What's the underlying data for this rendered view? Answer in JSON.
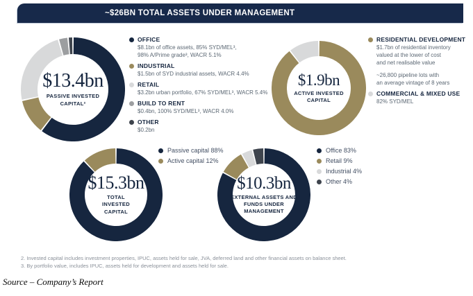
{
  "header": {
    "title": "~$26BN TOTAL ASSETS UNDER MANAGEMENT"
  },
  "palette": {
    "navy": "#16263F",
    "gold": "#9A8A5C",
    "light_gray": "#D8D9DA",
    "mid_gray": "#9C9EA0",
    "charcoal": "#3E444D",
    "header_bar": "#17294A",
    "body_text": "#5C6874",
    "footnote_gray": "#8A9099"
  },
  "chart_data": [
    {
      "type": "pie",
      "title": "Passive invested capital",
      "center_value": "$13.4bn",
      "center_label_lines": [
        "PASSIVE INVESTED",
        "CAPITAL²"
      ],
      "legend_position": "right",
      "segments": [
        {
          "label": "Office",
          "value_bn": 8.1,
          "pct": 60.4,
          "color": "navy"
        },
        {
          "label": "Industrial",
          "value_bn": 1.5,
          "pct": 11.2,
          "color": "gold"
        },
        {
          "label": "Retail",
          "value_bn": 3.2,
          "pct": 23.9,
          "color": "light_gray"
        },
        {
          "label": "Build to rent",
          "value_bn": 0.4,
          "pct": 3.0,
          "color": "mid_gray"
        },
        {
          "label": "Other",
          "value_bn": 0.2,
          "pct": 1.5,
          "color": "charcoal"
        }
      ],
      "legend": [
        {
          "title": "OFFICE",
          "color": "navy",
          "lines": [
            "$8.1bn of office assets, 85% SYD/MEL³,",
            "98% A/Prime grade³, WACR 5.1%"
          ]
        },
        {
          "title": "INDUSTRIAL",
          "color": "gold",
          "lines": [
            "$1.5bn of SYD industrial assets, WACR 4.4%"
          ]
        },
        {
          "title": "RETAIL",
          "color": "light_gray",
          "lines": [
            "$3.2bn urban portfolio, 67% SYD/MEL³, WACR 5.4%"
          ]
        },
        {
          "title": "BUILD TO RENT",
          "color": "mid_gray",
          "lines": [
            "$0.4bn, 100% SYD/MEL³, WACR 4.0%"
          ]
        },
        {
          "title": "OTHER",
          "color": "charcoal",
          "lines": [
            "$0.2bn"
          ]
        }
      ]
    },
    {
      "type": "pie",
      "title": "Active invested capital",
      "center_value": "$1.9bn",
      "center_label_lines": [
        "ACTIVE INVESTED",
        "CAPITAL"
      ],
      "legend_position": "right",
      "segments": [
        {
          "label": "Residential development",
          "value_bn": 1.7,
          "pct": 89.5,
          "color": "gold"
        },
        {
          "label": "Commercial & mixed use",
          "pct": 10.5,
          "color": "light_gray"
        }
      ],
      "legend": [
        {
          "title": "RESIDENTIAL DEVELOPMENT",
          "color": "gold",
          "lines": [
            "$1.7bn of residential inventory",
            "valued at the lower of cost",
            "and net realisable value",
            "",
            "~26,800 pipeline lots with",
            "an average vintage of 8 years"
          ]
        },
        {
          "title": "COMMERCIAL & MIXED USE",
          "color": "light_gray",
          "lines": [
            "82% SYD/MEL"
          ]
        }
      ]
    },
    {
      "type": "pie",
      "title": "Total invested capital",
      "center_value": "$15.3bn",
      "center_label_lines": [
        "TOTAL",
        "INVESTED",
        "CAPITAL"
      ],
      "legend_position": "right",
      "segments": [
        {
          "label": "Passive capital",
          "pct": 88,
          "color": "navy"
        },
        {
          "label": "Active capital",
          "pct": 12,
          "color": "gold"
        }
      ],
      "legend": [
        {
          "label": "Passive capital 88%",
          "color": "navy"
        },
        {
          "label": "Active capital 12%",
          "color": "gold"
        }
      ]
    },
    {
      "type": "pie",
      "title": "External assets and funds under management",
      "center_value": "$10.3bn",
      "center_label_lines": [
        "EXTERNAL ASSETS AND",
        "FUNDS UNDER",
        "MANAGEMENT"
      ],
      "legend_position": "right",
      "segments": [
        {
          "label": "Office",
          "pct": 83,
          "color": "navy"
        },
        {
          "label": "Retail",
          "pct": 9,
          "color": "gold"
        },
        {
          "label": "Industrial",
          "pct": 4,
          "color": "light_gray"
        },
        {
          "label": "Other",
          "pct": 4,
          "color": "charcoal"
        }
      ],
      "legend": [
        {
          "label": "Office 83%",
          "color": "navy"
        },
        {
          "label": "Retail 9%",
          "color": "gold"
        },
        {
          "label": "Industrial 4%",
          "color": "light_gray"
        },
        {
          "label": "Other 4%",
          "color": "charcoal"
        }
      ]
    }
  ],
  "footnotes": [
    "2.  Invested capital includes investment properties, IPUC, assets held for sale, JVA, deferred land and other financial assets on balance sheet.",
    "3.  By portfolio value, includes IPUC, assets held for development and assets held for sale."
  ],
  "source": "Source – Company’s Report"
}
